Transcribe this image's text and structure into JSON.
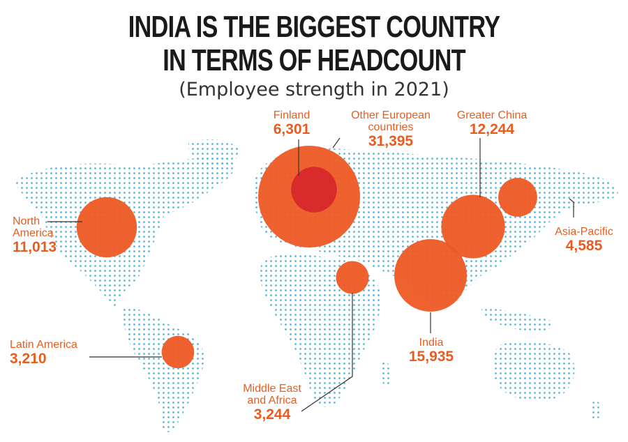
{
  "header": {
    "title_line1": "INDIA IS THE BIGGEST COUNTRY",
    "title_line2": "IN TERMS OF HEADCOUNT",
    "subtitle": "(Employee strength in 2021)"
  },
  "colors": {
    "bubble": "#ee5a24",
    "bubble_inner": "#d6262b",
    "label": "#e85d1f",
    "map_dots": "#5bb7d9",
    "leader": "#333333"
  },
  "regions": [
    {
      "key": "finland",
      "name": "Finland",
      "value": "6,301",
      "employees": 6301
    },
    {
      "key": "other-european",
      "name_line1": "Other European",
      "name_line2": "countries",
      "value": "31,395",
      "employees": 31395
    },
    {
      "key": "greater-china",
      "name": "Greater China",
      "value": "12,244",
      "employees": 12244
    },
    {
      "key": "north-america",
      "name_line1": "North",
      "name_line2": "America",
      "value": "11,013",
      "employees": 11013
    },
    {
      "key": "asia-pacific",
      "name": "Asia-Pacific",
      "value": "4,585",
      "employees": 4585
    },
    {
      "key": "india",
      "name": "India",
      "value": "15,935",
      "employees": 15935
    },
    {
      "key": "latin-america",
      "name": "Latin America",
      "value": "3,210",
      "employees": 3210
    },
    {
      "key": "middle-east-africa",
      "name_line1": "Middle East",
      "name_line2": "and Africa",
      "value": "3,244",
      "employees": 3244
    }
  ]
}
